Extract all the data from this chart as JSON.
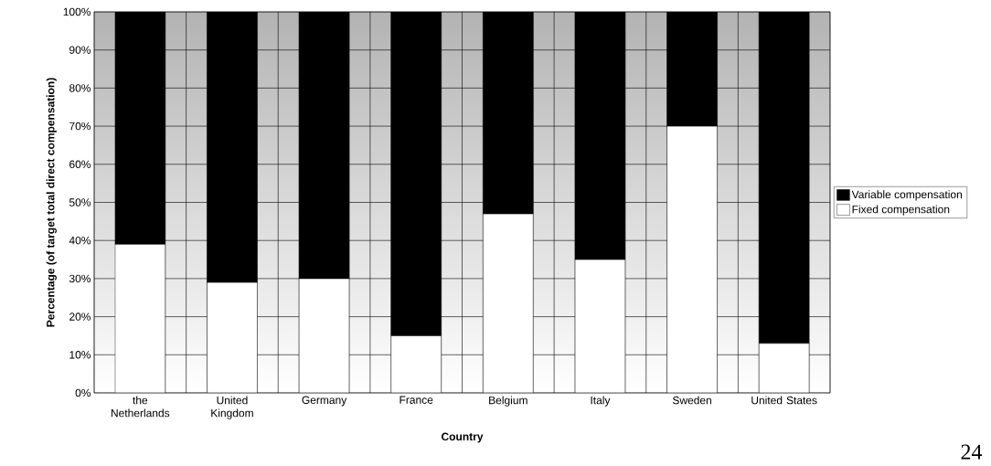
{
  "chart_data": {
    "type": "bar",
    "stacked": true,
    "xlabel": "Country",
    "ylabel": "Percentage (of target total direct compensation)",
    "categories": [
      "the Netherlands",
      "United Kingdom",
      "Germany",
      "France",
      "Belgium",
      "Italy",
      "Sweden",
      "United States"
    ],
    "series": [
      {
        "name": "Fixed compensation",
        "color": "#ffffff",
        "values": [
          39,
          29,
          30,
          15,
          47,
          35,
          70,
          13
        ]
      },
      {
        "name": "Variable compensation",
        "color": "#000000",
        "values": [
          61,
          71,
          70,
          85,
          53,
          65,
          30,
          87
        ]
      }
    ],
    "ylim": [
      0,
      100
    ],
    "yticks": [
      {
        "value": 0,
        "label": "0%"
      },
      {
        "value": 10,
        "label": "10%"
      },
      {
        "value": 20,
        "label": "20%"
      },
      {
        "value": 30,
        "label": "30%"
      },
      {
        "value": 40,
        "label": "40%"
      },
      {
        "value": 50,
        "label": "50%"
      },
      {
        "value": 60,
        "label": "60%"
      },
      {
        "value": 70,
        "label": "70%"
      },
      {
        "value": 80,
        "label": "80%"
      },
      {
        "value": 90,
        "label": "90%"
      },
      {
        "value": 100,
        "label": "100%"
      }
    ],
    "grid": "y",
    "legend": "right",
    "annotations": [
      "24"
    ]
  }
}
